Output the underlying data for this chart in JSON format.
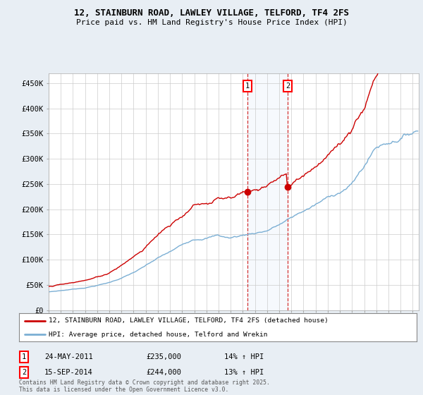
{
  "title_line1": "12, STAINBURN ROAD, LAWLEY VILLAGE, TELFORD, TF4 2FS",
  "title_line2": "Price paid vs. HM Land Registry's House Price Index (HPI)",
  "ylabel_ticks": [
    "£0",
    "£50K",
    "£100K",
    "£150K",
    "£200K",
    "£250K",
    "£300K",
    "£350K",
    "£400K",
    "£450K"
  ],
  "ytick_values": [
    0,
    50000,
    100000,
    150000,
    200000,
    250000,
    300000,
    350000,
    400000,
    450000
  ],
  "ylim": [
    0,
    470000
  ],
  "xlim": [
    1995,
    2025.5
  ],
  "hpi_color": "#7bafd4",
  "price_color": "#cc0000",
  "marker1_x": 2011.37,
  "marker2_x": 2014.7,
  "marker1_price": 235000,
  "marker2_price": 244000,
  "marker1_label": "24-MAY-2011",
  "marker2_label": "15-SEP-2014",
  "marker1_hpi_pct": "14% ↑ HPI",
  "marker2_hpi_pct": "13% ↑ HPI",
  "legend_line1": "12, STAINBURN ROAD, LAWLEY VILLAGE, TELFORD, TF4 2FS (detached house)",
  "legend_line2": "HPI: Average price, detached house, Telford and Wrekin",
  "footnote": "Contains HM Land Registry data © Crown copyright and database right 2025.\nThis data is licensed under the Open Government Licence v3.0.",
  "bg_color": "#e8eef4",
  "plot_bg_color": "#ffffff",
  "grid_color": "#cccccc"
}
